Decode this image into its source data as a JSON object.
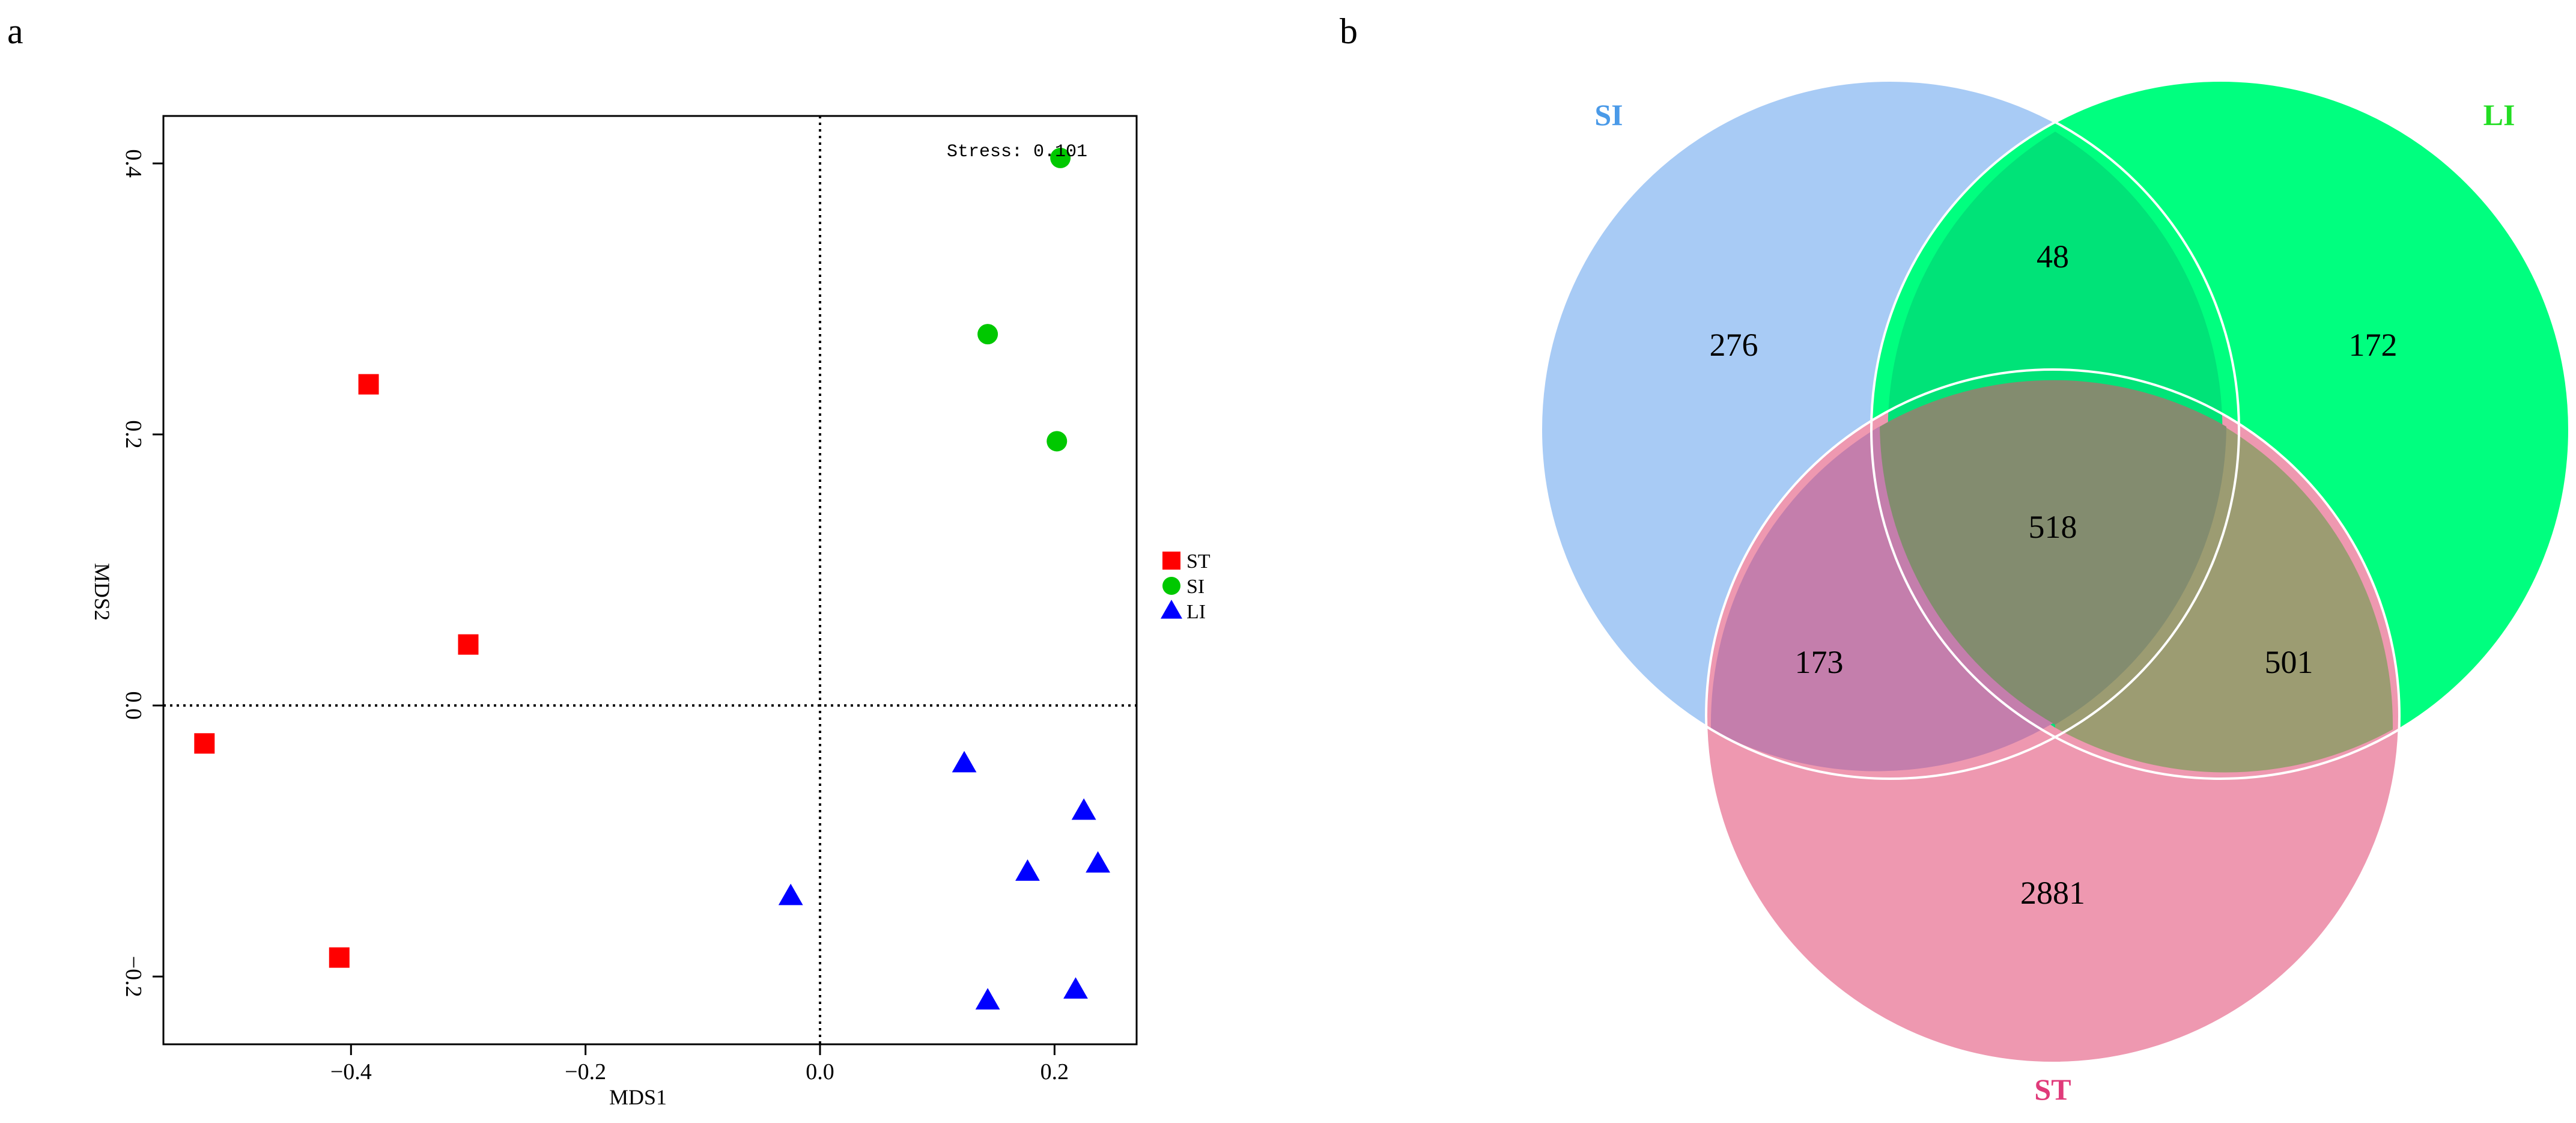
{
  "figure": {
    "panels": [
      "a",
      "b"
    ]
  },
  "chart_data": [
    {
      "type": "scatter",
      "title": "",
      "xlabel": "MDS1",
      "ylabel": "MDS2",
      "xlim": [
        -0.56,
        0.27
      ],
      "ylim": [
        -0.25,
        0.435
      ],
      "xticks": [
        -0.4,
        -0.2,
        0.0,
        0.2
      ],
      "xtick_labels": [
        "−0.4",
        "−0.2",
        "0.0",
        "0.2"
      ],
      "yticks": [
        -0.2,
        0.0,
        0.2,
        0.4
      ],
      "ytick_labels": [
        "−0.2",
        "0.0",
        "0.2",
        "0.4"
      ],
      "reference_lines": {
        "x": 0.0,
        "y": 0.0,
        "style": "dotted"
      },
      "annotation": "Stress: 0.101",
      "legend_position": "right",
      "grid": false,
      "series": [
        {
          "name": "ST",
          "marker": "square",
          "color": "#ff0000",
          "points": [
            {
              "x": -0.385,
              "y": 0.237
            },
            {
              "x": -0.3,
              "y": 0.045
            },
            {
              "x": -0.525,
              "y": -0.028
            },
            {
              "x": -0.41,
              "y": -0.186
            }
          ]
        },
        {
          "name": "SI",
          "marker": "circle",
          "color": "#00c800",
          "points": [
            {
              "x": 0.205,
              "y": 0.404
            },
            {
              "x": 0.143,
              "y": 0.274
            },
            {
              "x": 0.202,
              "y": 0.195
            }
          ]
        },
        {
          "name": "LI",
          "marker": "triangle",
          "color": "#0000ff",
          "points": [
            {
              "x": 0.123,
              "y": -0.043
            },
            {
              "x": 0.225,
              "y": -0.078
            },
            {
              "x": 0.237,
              "y": -0.117
            },
            {
              "x": 0.177,
              "y": -0.123
            },
            {
              "x": -0.025,
              "y": -0.141
            },
            {
              "x": 0.143,
              "y": -0.218
            },
            {
              "x": 0.218,
              "y": -0.21
            }
          ]
        }
      ]
    },
    {
      "type": "venn",
      "title": "",
      "sets": [
        {
          "name": "SI",
          "color": "#a8cbf5",
          "label_color": "#4a9ae8"
        },
        {
          "name": "LI",
          "color": "#00ff7f",
          "label_color": "#22dd22"
        },
        {
          "name": "ST",
          "color": "#ee98b0",
          "label_color": "#e03a7a"
        }
      ],
      "regions": [
        {
          "sets": [
            "SI"
          ],
          "value": 276
        },
        {
          "sets": [
            "LI"
          ],
          "value": 172
        },
        {
          "sets": [
            "ST"
          ],
          "value": 2881
        },
        {
          "sets": [
            "SI",
            "LI"
          ],
          "value": 48
        },
        {
          "sets": [
            "SI",
            "ST"
          ],
          "value": 173
        },
        {
          "sets": [
            "LI",
            "ST"
          ],
          "value": 501
        },
        {
          "sets": [
            "SI",
            "LI",
            "ST"
          ],
          "value": 518
        }
      ]
    }
  ]
}
